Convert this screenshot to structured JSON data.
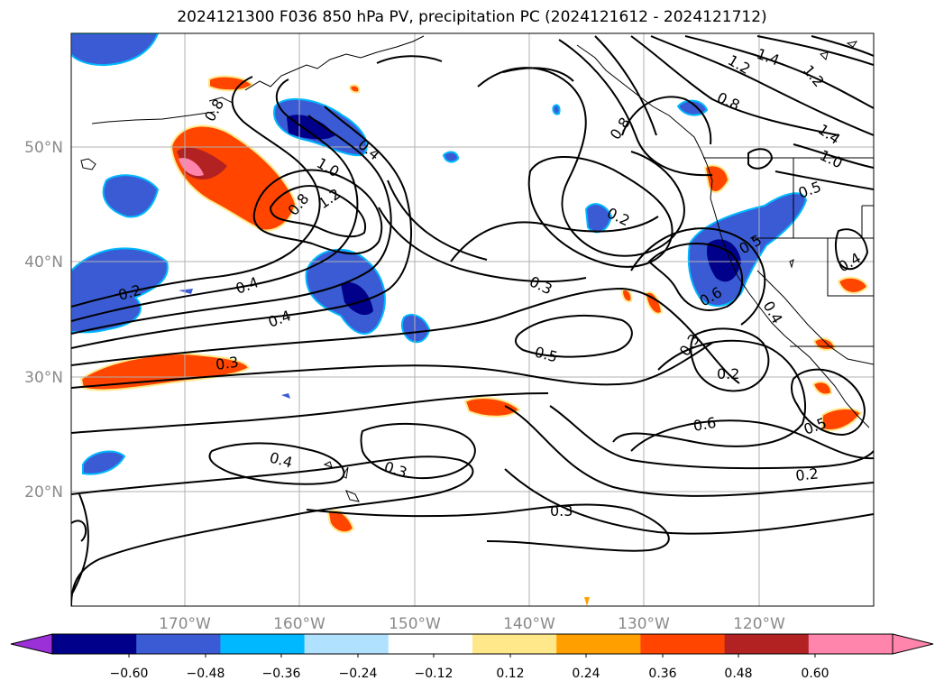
{
  "title": "2024121300 F036 850 hPa PV, precipitation PC (2024121612 - 2024121712)",
  "lat_labels": [
    "50°N",
    "40°N",
    "30°N",
    "20°N"
  ],
  "lon_labels": [
    "170°W",
    "160°W",
    "150°W",
    "140°W",
    "130°W",
    "120°W"
  ],
  "contour_labels": [
    "0.2",
    "0.4",
    "0.4",
    "0.3",
    "0.3",
    "0.5",
    "0.2",
    "0.3",
    "0.2",
    "0.6",
    "0.2",
    "0.4",
    "0.3",
    "0.3",
    "1.0",
    "1.2",
    "0.8",
    "0.8",
    "0.4",
    "0.8",
    "0.8",
    "1.2",
    "1.4",
    "1.2",
    "1.4",
    "1.0",
    "0.5",
    "0.4",
    "0.6",
    "0.5",
    "0.4",
    "0.5"
  ],
  "colorbar": {
    "ticks": [
      "−0.60",
      "−0.48",
      "−0.36",
      "−0.24",
      "−0.12",
      "0.12",
      "0.24",
      "0.36",
      "0.48",
      "0.60"
    ],
    "colors": [
      "#9b30d9",
      "#00008b",
      "#3a5bd3",
      "#00b8ff",
      "#b0e2ff",
      "#ffffff",
      "#ffe88a",
      "#ffa000",
      "#ff4500",
      "#b22222",
      "#ff85ad",
      "#ff85ad"
    ]
  },
  "colors": {
    "neg_strong": "#00008b",
    "neg_mid": "#3a5bd3",
    "neg_light": "#00b8ff",
    "neg_faint": "#b0e2ff",
    "pos_faint": "#ffe88a",
    "pos_light": "#ffa000",
    "pos_mid": "#ff4500",
    "pos_strong": "#b22222",
    "pos_max": "#ff85ad"
  }
}
